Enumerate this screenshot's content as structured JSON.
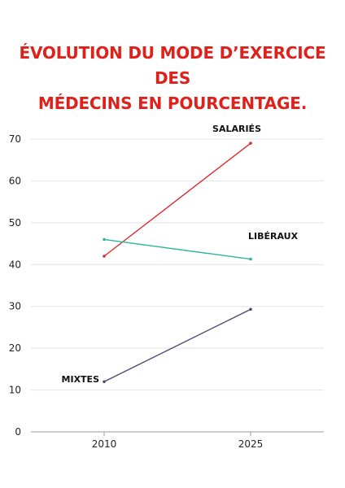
{
  "title_lines": [
    "ÉVOLUTION DU MODE D’EXERCICE DES",
    "MÉDECINS EN POURCENTAGE."
  ],
  "colors": {
    "title": "#e0201b",
    "grid": "#e4e4e4",
    "axis": "#9a9a9a"
  },
  "chart_data": {
    "type": "line",
    "title": "ÉVOLUTION DU MODE D’EXERCICE DES MÉDECINS EN POURCENTAGE.",
    "xlabel": "",
    "ylabel": "",
    "x": [
      "2010",
      "2025"
    ],
    "ylim": [
      0,
      70
    ],
    "yticks": [
      0,
      10,
      20,
      30,
      40,
      50,
      60,
      70
    ],
    "grid": true,
    "series": [
      {
        "name": "SALARIÉS",
        "values": [
          42,
          69
        ],
        "color": "#e0282f"
      },
      {
        "name": "LIBÉRAUX",
        "values": [
          46,
          41.3
        ],
        "color": "#2fb79b"
      },
      {
        "name": "MIXTES",
        "values": [
          12,
          29.3
        ],
        "color": "#4a4a7a"
      }
    ]
  }
}
